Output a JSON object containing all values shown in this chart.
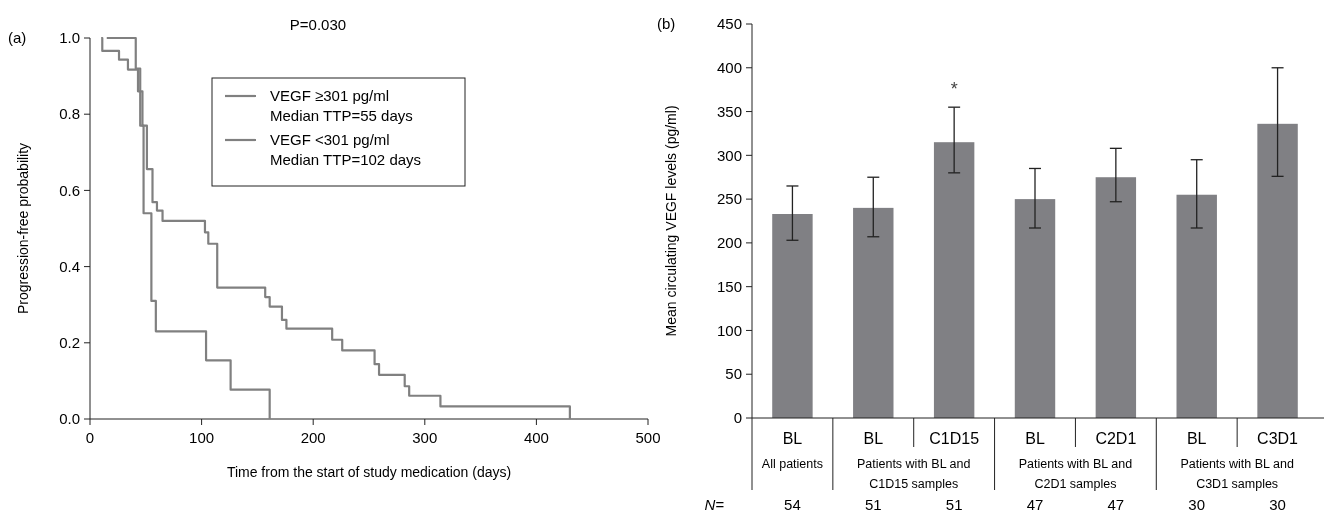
{
  "chart_data": [
    {
      "type": "step",
      "title": "(a)",
      "xlabel": "Time from the start of study medication (days)",
      "ylabel": "Progression-free probability",
      "xlim": [
        0,
        500
      ],
      "xticks": [
        0,
        100,
        200,
        300,
        400,
        500
      ],
      "ylim": [
        0,
        1
      ],
      "yticks": [
        {
          "value": 0,
          "label": "0.0"
        },
        {
          "value": 0.2,
          "label": "0.2"
        },
        {
          "value": 0.4,
          "label": "0.4"
        },
        {
          "value": 0.6,
          "label": "0.6"
        },
        {
          "value": 0.8,
          "label": "0.8"
        },
        {
          "value": 1,
          "label": "1.0"
        }
      ],
      "legend": "top",
      "grid": false,
      "annotations": [
        "P=0.030"
      ],
      "series": [
        {
          "name": "VEGF ≥301 pg/ml\nMedian TTP=55 days",
          "color": "#808080",
          "x": [
            15,
            41,
            45,
            48,
            55,
            59,
            104,
            126,
            161
          ],
          "values": [
            1,
            0.92,
            0.77,
            0.54,
            0.31,
            0.23,
            0.154,
            0.077,
            0
          ]
        },
        {
          "name": "VEGF <301 pg/ml\nMedian TTP=102 days",
          "color": "#808080",
          "x": [
            10,
            11,
            26,
            34,
            43,
            47,
            51,
            56,
            60,
            65,
            103,
            106,
            114,
            157,
            161,
            172,
            176,
            217,
            226,
            255,
            259,
            282,
            286,
            314,
            430
          ],
          "values": [
            1,
            0.966,
            0.943,
            0.917,
            0.86,
            0.77,
            0.656,
            0.569,
            0.547,
            0.52,
            0.49,
            0.46,
            0.345,
            0.32,
            0.295,
            0.26,
            0.237,
            0.208,
            0.18,
            0.144,
            0.116,
            0.086,
            0.061,
            0.033,
            0
          ]
        }
      ]
    },
    {
      "type": "bar",
      "title": "(b)",
      "ylabel": "Mean circulating VEGF levels (pg/ml)",
      "categories": [
        "BL",
        "BL",
        "C1D15",
        "BL",
        "C2D1",
        "BL",
        "C3D1"
      ],
      "values": [
        233,
        240,
        315,
        250,
        275,
        255,
        336
      ],
      "errors": [
        [
          203,
          265
        ],
        [
          207,
          275
        ],
        [
          280,
          355
        ],
        [
          217,
          285
        ],
        [
          247,
          308
        ],
        [
          217,
          295
        ],
        [
          276,
          400
        ]
      ],
      "color": "#808084",
      "ylim": [
        0,
        450
      ],
      "yticks": [
        0,
        50,
        100,
        150,
        200,
        250,
        300,
        350,
        400,
        450
      ],
      "grid": false,
      "annotations": [
        "*",
        "All patients",
        "Patients with BL and C1D15 samples",
        "Patients with BL and C2D1 samples",
        "Patients with BL and C3D1 samples",
        "N=",
        "54",
        "51",
        "51",
        "47",
        "47",
        "30",
        "30"
      ]
    }
  ]
}
